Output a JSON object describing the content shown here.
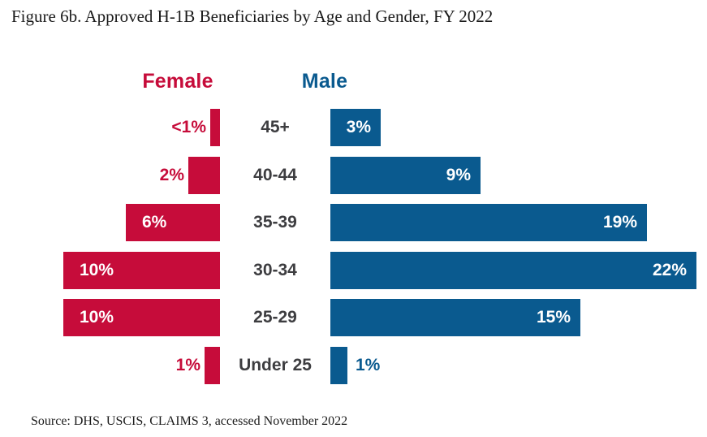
{
  "title": "Figure 6b. Approved H-1B Beneficiaries by Age and Gender, FY 2022",
  "source": "Source: DHS, USCIS, CLAIMS 3, accessed November 2022",
  "legend": {
    "female": "Female",
    "male": "Male"
  },
  "colors": {
    "female": "#C60C3A",
    "male": "#0A5A8F",
    "category_text": "#3d3d40",
    "inside_label_text": "#ffffff",
    "title_text": "#1a1a1a",
    "background": "#ffffff"
  },
  "chart_data": {
    "type": "bar",
    "orientation": "diverging-horizontal (population pyramid)",
    "title": "Figure 6b. Approved H-1B Beneficiaries by Age and Gender, FY 2022",
    "categories": [
      "45+",
      "40-44",
      "35-39",
      "30-34",
      "25-29",
      "Under 25"
    ],
    "series": [
      {
        "name": "Female",
        "side": "left",
        "values": [
          0.6,
          2,
          6,
          10,
          10,
          1
        ],
        "labels": [
          "<1%",
          "2%",
          "6%",
          "10%",
          "10%",
          "1%"
        ]
      },
      {
        "name": "Male",
        "side": "right",
        "values": [
          3,
          9,
          19,
          22,
          15,
          1
        ],
        "labels": [
          "3%",
          "9%",
          "19%",
          "22%",
          "15%",
          "1%"
        ]
      }
    ],
    "value_unit": "%",
    "max_value_pct": 22,
    "grid": false,
    "axes_hidden": true,
    "legend_position": "top",
    "value_labels": "inside bar (white) when bar is wide, outside bar (series color) when narrow",
    "source_note": "Source: DHS, USCIS, CLAIMS 3, accessed November 2022"
  }
}
